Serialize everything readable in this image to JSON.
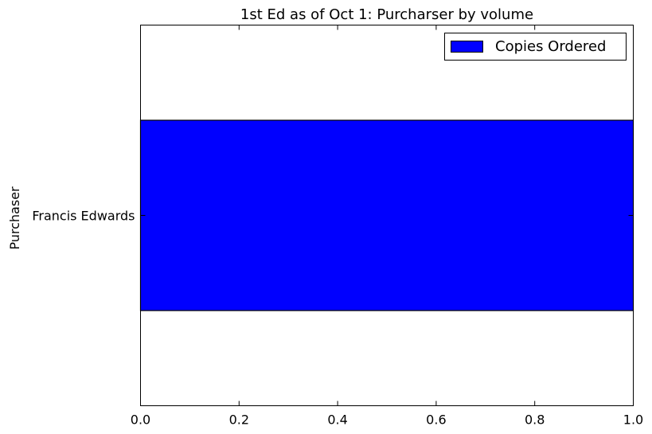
{
  "chart_data": {
    "type": "bar",
    "orientation": "horizontal",
    "title": "1st Ed as of Oct 1: Purcharser by volume",
    "xlabel": "",
    "ylabel": "Purchaser",
    "categories": [
      "Francis Edwards"
    ],
    "series": [
      {
        "name": "Copies Ordered",
        "values": [
          1
        ],
        "color": "#0000ff"
      }
    ],
    "xlim": [
      0,
      1
    ],
    "xticks": [
      "0.0",
      "0.2",
      "0.4",
      "0.6",
      "0.8",
      "1.0"
    ],
    "grid": false,
    "legend": {
      "placement": "top-right"
    }
  }
}
